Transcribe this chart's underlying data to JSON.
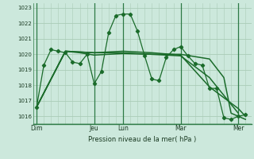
{
  "bg_color": "#cce8dc",
  "grid_color": "#aaccb8",
  "line_color": "#1a6b2a",
  "border_color": "#2d7a45",
  "title": "Pression niveau de la mer( hPa )",
  "ylim": [
    1015.5,
    1023.3
  ],
  "yticks": [
    1016,
    1017,
    1018,
    1019,
    1020,
    1021,
    1022,
    1023
  ],
  "xlim": [
    -3,
    179
  ],
  "day_labels": [
    "Dim",
    "Jeu",
    "Lun",
    "Mar",
    "Mer"
  ],
  "day_positions": [
    0,
    48,
    72,
    120,
    168
  ],
  "series1": [
    [
      0,
      1016.6
    ],
    [
      6,
      1019.3
    ],
    [
      12,
      1020.3
    ],
    [
      18,
      1020.2
    ],
    [
      24,
      1020.1
    ],
    [
      30,
      1019.5
    ],
    [
      36,
      1019.4
    ],
    [
      42,
      1020.0
    ],
    [
      48,
      1018.1
    ],
    [
      54,
      1018.9
    ],
    [
      60,
      1021.4
    ],
    [
      66,
      1022.5
    ],
    [
      72,
      1022.6
    ],
    [
      78,
      1022.6
    ],
    [
      84,
      1021.5
    ],
    [
      90,
      1019.9
    ],
    [
      96,
      1018.4
    ],
    [
      102,
      1018.3
    ],
    [
      108,
      1019.8
    ],
    [
      114,
      1020.3
    ],
    [
      120,
      1020.5
    ],
    [
      126,
      1019.9
    ],
    [
      132,
      1019.4
    ],
    [
      138,
      1019.3
    ],
    [
      144,
      1017.8
    ],
    [
      150,
      1017.8
    ],
    [
      156,
      1015.9
    ],
    [
      162,
      1015.8
    ],
    [
      168,
      1016.0
    ],
    [
      174,
      1016.1
    ]
  ],
  "series2": [
    [
      0,
      1016.6
    ],
    [
      24,
      1020.2
    ],
    [
      48,
      1020.1
    ],
    [
      72,
      1020.1
    ],
    [
      96,
      1020.0
    ],
    [
      120,
      1019.9
    ],
    [
      144,
      1018.5
    ],
    [
      168,
      1016.2
    ]
  ],
  "series3": [
    [
      0,
      1016.6
    ],
    [
      24,
      1020.2
    ],
    [
      48,
      1020.1
    ],
    [
      72,
      1020.2
    ],
    [
      96,
      1020.1
    ],
    [
      120,
      1019.95
    ],
    [
      144,
      1017.9
    ],
    [
      168,
      1016.5
    ],
    [
      174,
      1016.0
    ]
  ],
  "series4": [
    [
      0,
      1016.6
    ],
    [
      24,
      1020.2
    ],
    [
      36,
      1020.1
    ],
    [
      48,
      1019.95
    ],
    [
      60,
      1020.0
    ],
    [
      72,
      1020.05
    ],
    [
      96,
      1020.0
    ],
    [
      120,
      1020.0
    ],
    [
      144,
      1019.7
    ],
    [
      156,
      1018.5
    ],
    [
      162,
      1016.2
    ],
    [
      168,
      1016.0
    ],
    [
      174,
      1015.8
    ]
  ]
}
